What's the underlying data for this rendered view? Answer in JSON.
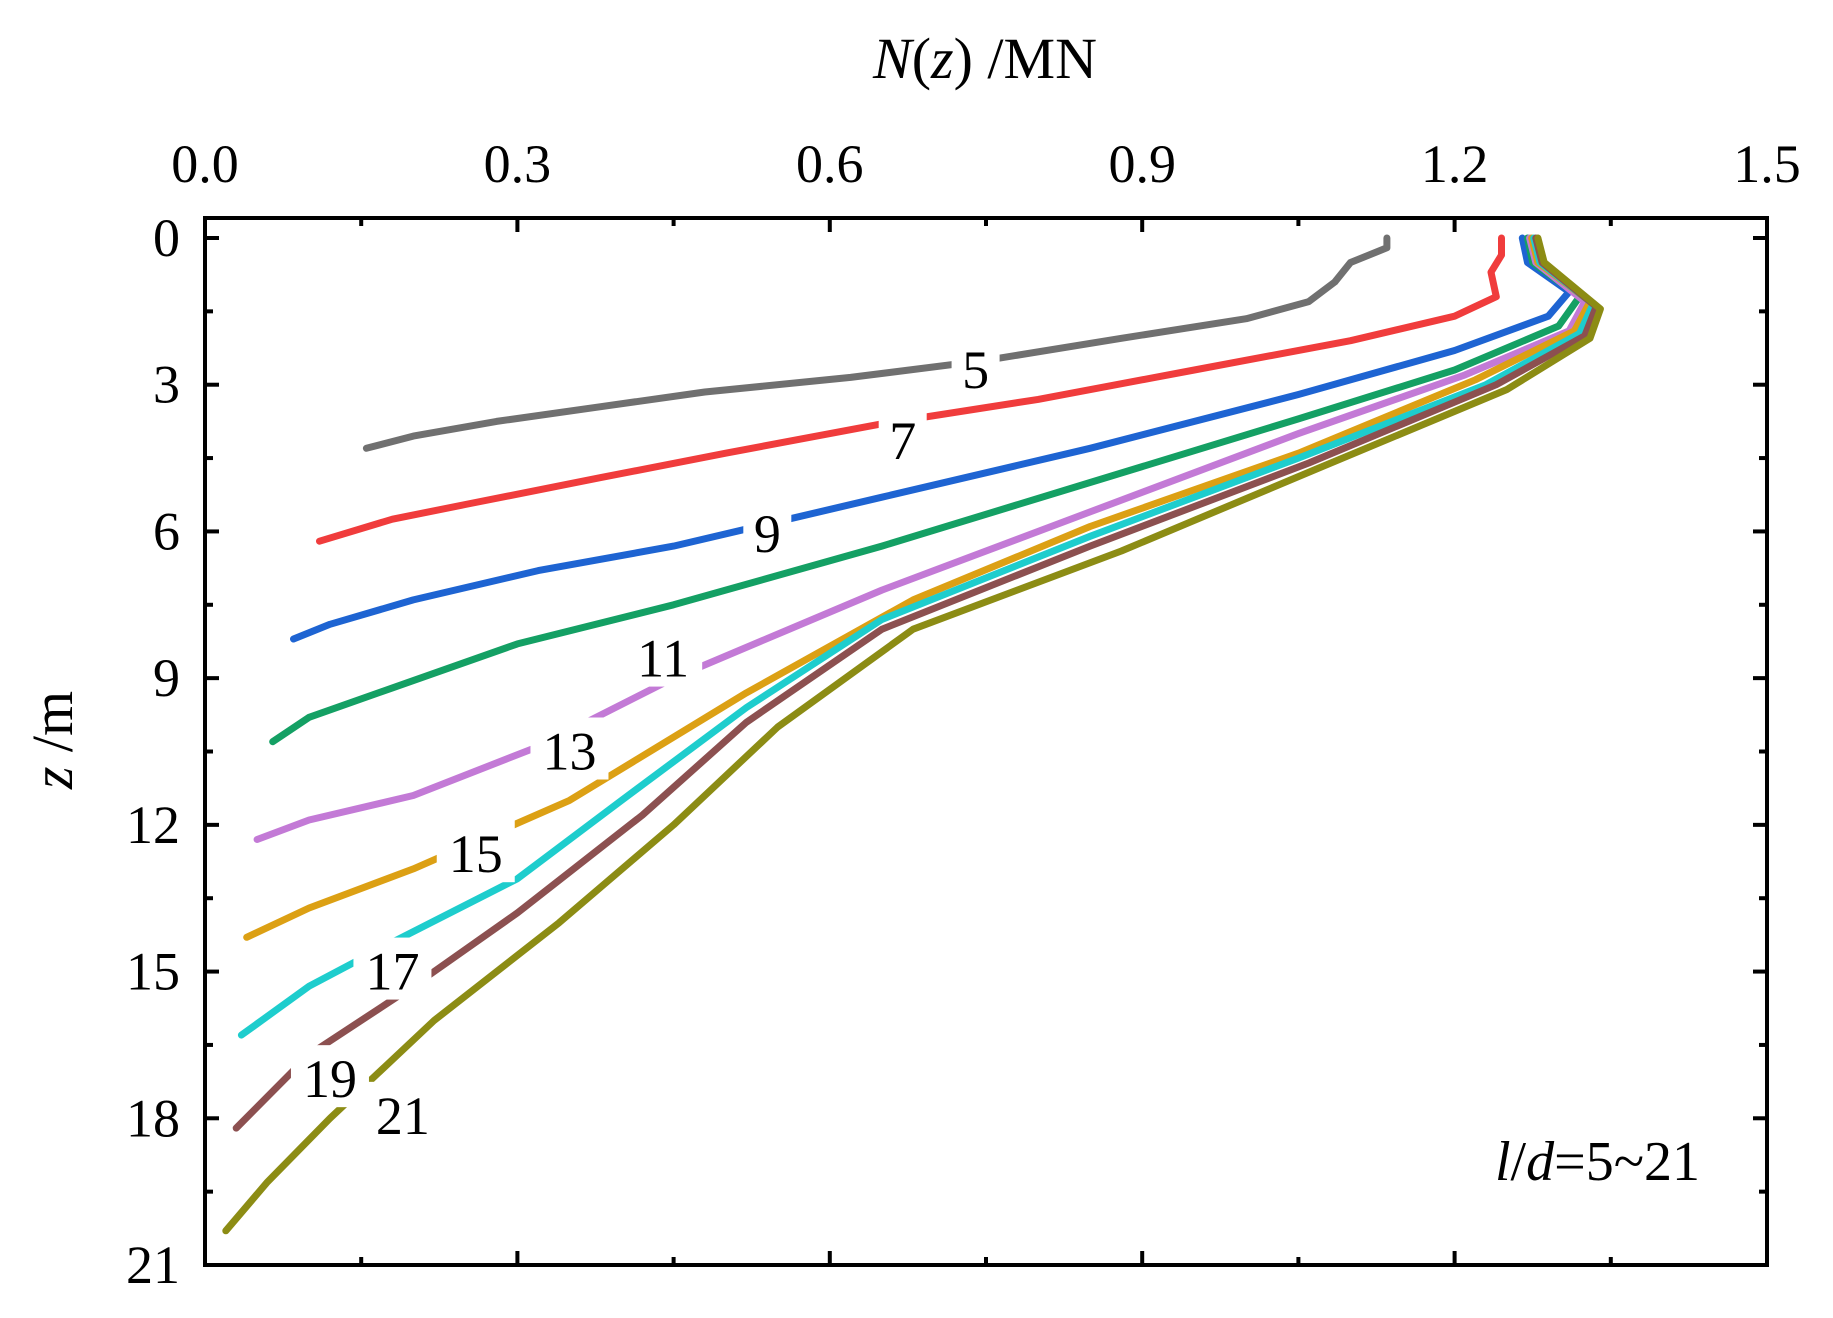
{
  "chart_data": {
    "type": "line",
    "title": "",
    "xlabel": {
      "var": "N",
      "open": "(",
      "arg": "z",
      "close": ")",
      "unit": " /MN"
    },
    "ylabel": {
      "var": "z",
      "unit": " /m"
    },
    "xlim": [
      0.0,
      1.5
    ],
    "ylim": [
      0,
      21
    ],
    "x_ticks": [
      "0.0",
      "0.3",
      "0.6",
      "0.9",
      "1.2",
      "1.5"
    ],
    "y_ticks": [
      "0",
      "3",
      "6",
      "9",
      "12",
      "15",
      "18",
      "21"
    ],
    "x_tick_values": [
      0.0,
      0.3,
      0.6,
      0.9,
      1.2,
      1.5
    ],
    "y_tick_values": [
      0,
      3,
      6,
      9,
      12,
      15,
      18,
      21
    ],
    "annotation": {
      "l": "l",
      "slash": "/",
      "d": "d",
      "rest": "=5~21"
    },
    "series": [
      {
        "name": "5",
        "color": "#707070",
        "points": [
          [
            1.135,
            0
          ],
          [
            1.135,
            0.2
          ],
          [
            1.1,
            0.5
          ],
          [
            1.085,
            0.9
          ],
          [
            1.06,
            1.3
          ],
          [
            1.0,
            1.65
          ],
          [
            0.88,
            2.05
          ],
          [
            0.75,
            2.5
          ],
          [
            0.62,
            2.85
          ],
          [
            0.48,
            3.15
          ],
          [
            0.38,
            3.45
          ],
          [
            0.28,
            3.75
          ],
          [
            0.2,
            4.05
          ],
          [
            0.155,
            4.3
          ]
        ],
        "label_at": [
          0.74,
          2.7
        ]
      },
      {
        "name": "7",
        "color": "#f03c3c",
        "points": [
          [
            1.245,
            0
          ],
          [
            1.245,
            0.35
          ],
          [
            1.235,
            0.7
          ],
          [
            1.24,
            1.2
          ],
          [
            1.2,
            1.6
          ],
          [
            1.1,
            2.1
          ],
          [
            0.95,
            2.7
          ],
          [
            0.8,
            3.3
          ],
          [
            0.65,
            3.8
          ],
          [
            0.5,
            4.4
          ],
          [
            0.38,
            4.9
          ],
          [
            0.25,
            5.45
          ],
          [
            0.18,
            5.75
          ],
          [
            0.11,
            6.2
          ]
        ],
        "label_at": [
          0.67,
          4.15
        ]
      },
      {
        "name": "9",
        "color": "#1e64d2",
        "points": [
          [
            1.265,
            0
          ],
          [
            1.27,
            0.5
          ],
          [
            1.31,
            1.1
          ],
          [
            1.29,
            1.6
          ],
          [
            1.2,
            2.3
          ],
          [
            1.05,
            3.2
          ],
          [
            0.85,
            4.3
          ],
          [
            0.65,
            5.3
          ],
          [
            0.45,
            6.3
          ],
          [
            0.32,
            6.8
          ],
          [
            0.2,
            7.4
          ],
          [
            0.12,
            7.9
          ],
          [
            0.085,
            8.2
          ]
        ],
        "label_at": [
          0.54,
          6.05
        ]
      },
      {
        "name": "11",
        "color": "#14a064",
        "points": [
          [
            1.27,
            0
          ],
          [
            1.275,
            0.5
          ],
          [
            1.32,
            1.2
          ],
          [
            1.3,
            1.8
          ],
          [
            1.2,
            2.7
          ],
          [
            1.05,
            3.7
          ],
          [
            0.85,
            5.0
          ],
          [
            0.65,
            6.3
          ],
          [
            0.45,
            7.5
          ],
          [
            0.3,
            8.3
          ],
          [
            0.18,
            9.2
          ],
          [
            0.1,
            9.8
          ],
          [
            0.065,
            10.3
          ]
        ],
        "label_at": [
          0.44,
          8.6
        ]
      },
      {
        "name": "13",
        "color": "#c37ad6",
        "points": [
          [
            1.272,
            0
          ],
          [
            1.278,
            0.5
          ],
          [
            1.325,
            1.3
          ],
          [
            1.31,
            1.9
          ],
          [
            1.21,
            2.8
          ],
          [
            1.05,
            4.0
          ],
          [
            0.85,
            5.6
          ],
          [
            0.65,
            7.2
          ],
          [
            0.45,
            9.0
          ],
          [
            0.32,
            10.4
          ],
          [
            0.2,
            11.4
          ],
          [
            0.1,
            11.9
          ],
          [
            0.05,
            12.3
          ]
        ],
        "label_at": [
          0.35,
          10.5
        ]
      },
      {
        "name": "15",
        "color": "#dca014",
        "points": [
          [
            1.274,
            0
          ],
          [
            1.28,
            0.5
          ],
          [
            1.33,
            1.3
          ],
          [
            1.315,
            1.9
          ],
          [
            1.22,
            2.9
          ],
          [
            1.05,
            4.4
          ],
          [
            0.85,
            5.9
          ],
          [
            0.68,
            7.4
          ],
          [
            0.52,
            9.3
          ],
          [
            0.35,
            11.5
          ],
          [
            0.2,
            12.9
          ],
          [
            0.1,
            13.7
          ],
          [
            0.04,
            14.3
          ]
        ],
        "label_at": [
          0.26,
          12.6
        ]
      },
      {
        "name": "17",
        "color": "#1ecdcd",
        "points": [
          [
            1.276,
            0
          ],
          [
            1.282,
            0.5
          ],
          [
            1.333,
            1.35
          ],
          [
            1.32,
            1.95
          ],
          [
            1.23,
            3.0
          ],
          [
            1.05,
            4.5
          ],
          [
            0.85,
            6.1
          ],
          [
            0.65,
            7.8
          ],
          [
            0.52,
            9.6
          ],
          [
            0.4,
            11.5
          ],
          [
            0.3,
            13.1
          ],
          [
            0.18,
            14.4
          ],
          [
            0.1,
            15.3
          ],
          [
            0.035,
            16.3
          ]
        ],
        "label_at": [
          0.18,
          15.0
        ]
      },
      {
        "name": "19",
        "color": "#8c5050",
        "points": [
          [
            1.278,
            0
          ],
          [
            1.284,
            0.5
          ],
          [
            1.336,
            1.4
          ],
          [
            1.325,
            2.0
          ],
          [
            1.24,
            3.0
          ],
          [
            1.06,
            4.6
          ],
          [
            0.85,
            6.3
          ],
          [
            0.65,
            8.0
          ],
          [
            0.52,
            9.9
          ],
          [
            0.42,
            11.8
          ],
          [
            0.3,
            13.8
          ],
          [
            0.2,
            15.3
          ],
          [
            0.1,
            16.7
          ],
          [
            0.03,
            18.2
          ]
        ],
        "label_at": [
          0.12,
          17.2
        ]
      },
      {
        "name": "21",
        "color": "#8c8c14",
        "points": [
          [
            1.28,
            0
          ],
          [
            1.286,
            0.5
          ],
          [
            1.34,
            1.45
          ],
          [
            1.33,
            2.05
          ],
          [
            1.25,
            3.1
          ],
          [
            1.07,
            4.7
          ],
          [
            0.88,
            6.4
          ],
          [
            0.68,
            8.0
          ],
          [
            0.55,
            10.0
          ],
          [
            0.45,
            12.0
          ],
          [
            0.34,
            14.0
          ],
          [
            0.22,
            16.0
          ],
          [
            0.12,
            18.0
          ],
          [
            0.06,
            19.3
          ],
          [
            0.02,
            20.3
          ]
        ],
        "label_at": [
          0.19,
          17.95
        ]
      }
    ]
  }
}
